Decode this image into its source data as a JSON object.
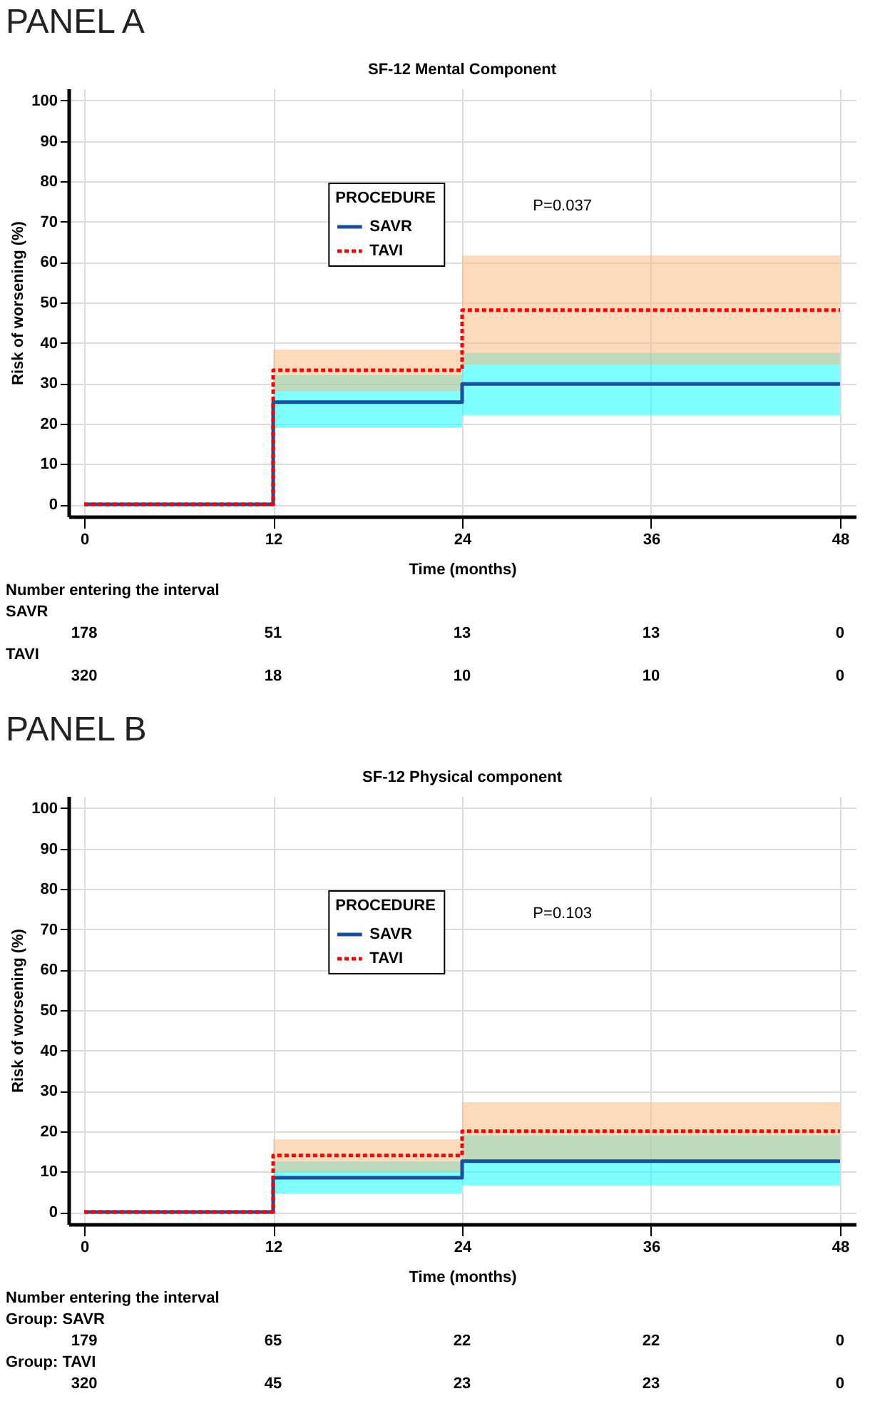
{
  "chart_data": [
    {
      "type": "step",
      "title": "SF-12 Mental Component",
      "xlabel": "Time (months)",
      "ylabel": "Risk of worsening (%)",
      "legend_title": "PROCEDURE",
      "legend": "top",
      "grid": true,
      "x": [
        0,
        12,
        24,
        48
      ],
      "xlim": [
        -1,
        49
      ],
      "xticks": [
        0,
        12,
        24,
        36,
        48
      ],
      "ylim": [
        -3,
        103
      ],
      "yticks": [
        0,
        10,
        20,
        30,
        40,
        50,
        60,
        70,
        80,
        90,
        100
      ],
      "series": [
        {
          "name": "SAVR",
          "color": "#1a4f9e",
          "line_style": "solid",
          "values": [
            0,
            25.3,
            29.8,
            29.8
          ],
          "lower": [
            0,
            19,
            22,
            22
          ],
          "upper": [
            0,
            32,
            37.5,
            37.5
          ]
        },
        {
          "name": "TAVI",
          "color": "#ff0000",
          "line_style": "dotted",
          "values": [
            0,
            33.2,
            48.1,
            48.1
          ],
          "lower": [
            0,
            28,
            34.6,
            34.6
          ],
          "upper": [
            0,
            38.3,
            61.6,
            61.6
          ]
        }
      ],
      "annotations": [
        "PANEL A",
        "P=0.037",
        "Number entering the interval",
        "SAVR",
        "178",
        "51",
        "13",
        "13",
        "0",
        "TAVI",
        "320",
        "18",
        "10",
        "10",
        "0"
      ]
    },
    {
      "type": "step",
      "title": "SF-12 Physical component",
      "xlabel": "Time (months)",
      "ylabel": "Risk of worsening (%)",
      "legend_title": "PROCEDURE",
      "legend": "top",
      "grid": true,
      "x": [
        0,
        12,
        24,
        48
      ],
      "xlim": [
        -1,
        49
      ],
      "xticks": [
        0,
        12,
        24,
        36,
        48
      ],
      "ylim": [
        -3,
        103
      ],
      "yticks": [
        0,
        10,
        20,
        30,
        40,
        50,
        60,
        70,
        80,
        90,
        100
      ],
      "series": [
        {
          "name": "SAVR",
          "color": "#1a4f9e",
          "line_style": "solid",
          "values": [
            0,
            8.5,
            12.6,
            12.6
          ],
          "lower": [
            0,
            4.5,
            6.5,
            6.5
          ],
          "upper": [
            0,
            12.5,
            19,
            19
          ]
        },
        {
          "name": "TAVI",
          "color": "#ff0000",
          "line_style": "dotted",
          "values": [
            0,
            14,
            20,
            20
          ],
          "lower": [
            0,
            10,
            12.7,
            12.7
          ],
          "upper": [
            0,
            18,
            27.2,
            27.2
          ]
        }
      ],
      "annotations": [
        "PANEL B",
        "P=0.103",
        "Number entering the interval",
        "Group:  SAVR",
        "179",
        "65",
        "22",
        "22",
        "0",
        "Group:  TAVI",
        "320",
        "45",
        "23",
        "23",
        "0"
      ]
    }
  ]
}
